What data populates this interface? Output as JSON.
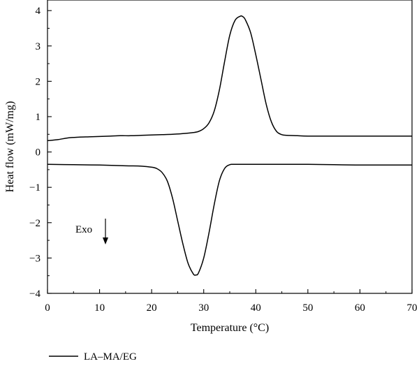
{
  "chart_data": {
    "type": "line",
    "title": "",
    "xlabel": "Temperature (°C)",
    "ylabel": "Heat flow (mW/mg)",
    "xlim": [
      0,
      70
    ],
    "ylim": [
      -4,
      4.3
    ],
    "xticks": [
      0,
      10,
      20,
      30,
      40,
      50,
      60,
      70
    ],
    "yticks": [
      -4,
      -3,
      -2,
      -1,
      0,
      1,
      2,
      3,
      4
    ],
    "grid": false,
    "legend": {
      "placement": "bottom-left",
      "entries": [
        "LA–MA/EG"
      ]
    },
    "annotation": {
      "text": "Exo",
      "arrow": "down",
      "x": 11,
      "y": -2.2
    },
    "series": [
      {
        "name": "LA–MA/EG",
        "segment": "heating",
        "x": [
          0,
          2,
          4,
          6,
          8,
          10,
          12,
          14,
          16,
          18,
          20,
          22,
          24,
          26,
          28,
          29,
          30,
          31,
          32,
          33,
          34,
          35,
          36,
          37,
          37.5,
          38,
          39,
          40,
          41,
          42,
          43,
          44,
          45,
          46,
          48,
          50,
          55,
          60,
          65,
          70
        ],
        "y": [
          0.32,
          0.35,
          0.4,
          0.42,
          0.43,
          0.44,
          0.45,
          0.46,
          0.46,
          0.47,
          0.48,
          0.49,
          0.5,
          0.52,
          0.55,
          0.58,
          0.66,
          0.82,
          1.15,
          1.75,
          2.55,
          3.3,
          3.72,
          3.84,
          3.83,
          3.74,
          3.38,
          2.75,
          2.05,
          1.35,
          0.85,
          0.58,
          0.49,
          0.47,
          0.46,
          0.45,
          0.45,
          0.45,
          0.45,
          0.45
        ]
      },
      {
        "name": "LA–MA/EG",
        "segment": "cooling",
        "x": [
          0,
          5,
          10,
          15,
          18,
          20,
          21,
          22,
          23,
          24,
          25,
          26,
          27,
          28,
          28.5,
          29,
          30,
          31,
          32,
          33,
          34,
          35,
          36,
          40,
          45,
          50,
          55,
          60,
          65,
          70
        ],
        "y": [
          -0.35,
          -0.36,
          -0.37,
          -0.39,
          -0.4,
          -0.43,
          -0.47,
          -0.58,
          -0.82,
          -1.3,
          -1.95,
          -2.6,
          -3.15,
          -3.45,
          -3.48,
          -3.42,
          -3.0,
          -2.3,
          -1.5,
          -0.82,
          -0.47,
          -0.36,
          -0.35,
          -0.35,
          -0.35,
          -0.35,
          -0.36,
          -0.37,
          -0.37,
          -0.37
        ]
      }
    ]
  }
}
